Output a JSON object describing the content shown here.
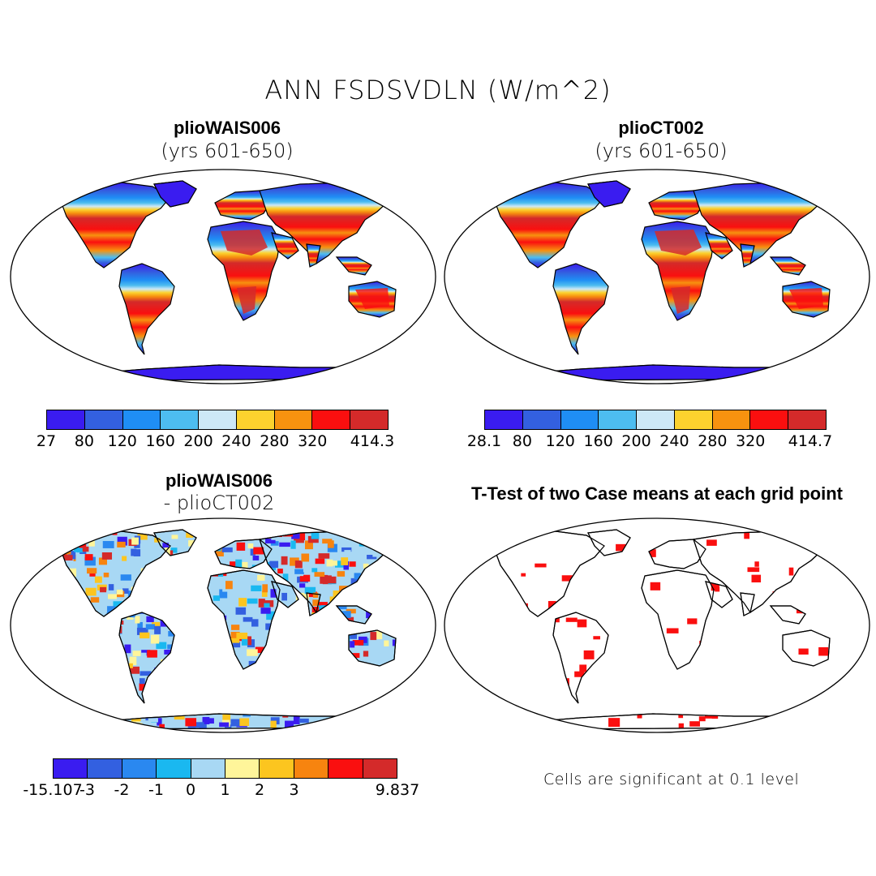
{
  "title": "ANN FSDSVDLN (W/m^2)",
  "panels": [
    {
      "title": "plioWAIS006",
      "subtitle": "(yrs 601-650)"
    },
    {
      "title": "plioCT002",
      "subtitle": "(yrs 601-650)"
    },
    {
      "title": "plioWAIS006",
      "subtitle": "- plioCT002"
    },
    {
      "title": "T-Test of two Case means at each grid point",
      "subtitle": ""
    }
  ],
  "colorbars": [
    {
      "colors": [
        "#3a1cf0",
        "#3360e0",
        "#1f8ef5",
        "#4dbdf0",
        "#cde8f6",
        "#fcd22e",
        "#f7920f",
        "#fa0f0f",
        "#d42a2a"
      ],
      "labels": [
        "27",
        "80",
        "120",
        "160",
        "200",
        "240",
        "280",
        "320",
        "414.3"
      ]
    },
    {
      "colors": [
        "#3a1cf0",
        "#3360e0",
        "#1f8ef5",
        "#4dbdf0",
        "#cde8f6",
        "#fcd22e",
        "#f7920f",
        "#fa0f0f",
        "#d42a2a"
      ],
      "labels": [
        "28.1",
        "80",
        "120",
        "160",
        "200",
        "240",
        "280",
        "320",
        "414.7"
      ]
    },
    {
      "colors": [
        "#3a1cf0",
        "#3360e0",
        "#2a88f0",
        "#1ab8f0",
        "#a8d8f4",
        "#fff59a",
        "#fcc51f",
        "#f7840f",
        "#fa0f0f",
        "#d42a2a"
      ],
      "labels": [
        "-15.107",
        "-3",
        "-2",
        "-1",
        "0",
        "1",
        "2",
        "3",
        "9.837"
      ]
    }
  ],
  "note": "Cells are significant at 0.1 level"
}
